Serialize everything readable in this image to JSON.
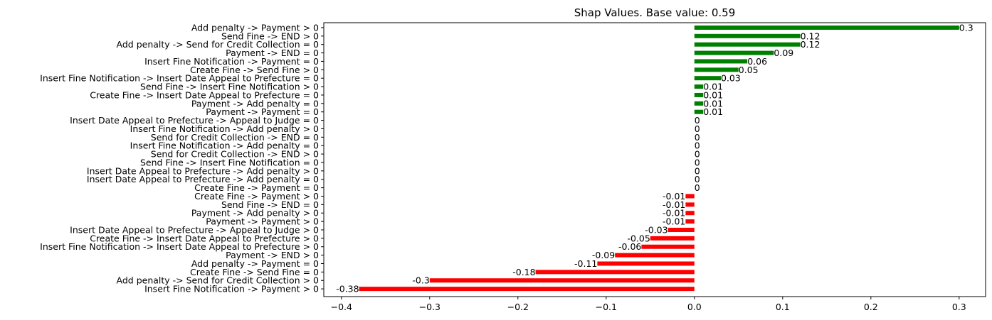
{
  "chart_data": {
    "type": "bar",
    "orientation": "horizontal",
    "title": "Shap Values. Base value: 0.59",
    "xlabel": "",
    "ylabel": "",
    "xlim": [
      -0.42,
      0.33
    ],
    "xticks": [
      -0.4,
      -0.3,
      -0.2,
      -0.1,
      0.0,
      0.1,
      0.2,
      0.3
    ],
    "xtick_labels": [
      "−0.4",
      "−0.3",
      "−0.2",
      "−0.1",
      "0.0",
      "0.1",
      "0.2",
      "0.3"
    ],
    "grid": false,
    "colors": {
      "positive": "#008000",
      "negative": "#ff0000"
    },
    "categories": [
      "Add penalty -> Payment > 0",
      "Send Fine -> END > 0",
      "Add penalty -> Send for Credit Collection = 0",
      "Payment -> END = 0",
      "Insert Fine Notification -> Payment = 0",
      "Create Fine -> Send Fine > 0",
      "Insert Fine Notification -> Insert Date Appeal to Prefecture = 0",
      "Send Fine -> Insert Fine Notification > 0",
      "Create Fine -> Insert Date Appeal to Prefecture = 0",
      "Payment -> Add penalty = 0",
      "Payment -> Payment = 0",
      "Insert Date Appeal to Prefecture -> Appeal to Judge = 0",
      "Insert Fine Notification -> Add penalty > 0",
      "Send for Credit Collection -> END = 0",
      "Insert Fine Notification -> Add penalty = 0",
      "Send for Credit Collection -> END > 0",
      "Send Fine -> Insert Fine Notification = 0",
      "Insert Date Appeal to Prefecture -> Add penalty > 0",
      "Insert Date Appeal to Prefecture -> Add penalty = 0",
      "Create Fine -> Payment = 0",
      "Create Fine -> Payment > 0",
      "Send Fine -> END = 0",
      "Payment -> Add penalty > 0",
      "Payment -> Payment > 0",
      "Insert Date Appeal to Prefecture -> Appeal to Judge > 0",
      "Create Fine -> Insert Date Appeal to Prefecture > 0",
      "Insert Fine Notification -> Insert Date Appeal to Prefecture > 0",
      "Payment -> END > 0",
      "Add penalty -> Payment = 0",
      "Create Fine -> Send Fine = 0",
      "Add penalty -> Send for Credit Collection > 0",
      "Insert Fine Notification -> Payment > 0"
    ],
    "values": [
      0.3,
      0.12,
      0.12,
      0.09,
      0.06,
      0.05,
      0.03,
      0.01,
      0.01,
      0.01,
      0.01,
      0,
      0,
      0,
      0,
      0,
      0,
      0,
      0,
      0,
      -0.01,
      -0.01,
      -0.01,
      -0.01,
      -0.03,
      -0.05,
      -0.06,
      -0.09,
      -0.11,
      -0.18,
      -0.3,
      -0.38
    ],
    "value_labels": [
      "0.3",
      "0.12",
      "0.12",
      "0.09",
      "0.06",
      "0.05",
      "0.03",
      "0.01",
      "0.01",
      "0.01",
      "0.01",
      "0",
      "0",
      "0",
      "0",
      "0",
      "0",
      "0",
      "0",
      "0",
      "-0.01",
      "-0.01",
      "-0.01",
      "-0.01",
      "-0.03",
      "-0.05",
      "-0.06",
      "-0.09",
      "-0.11",
      "-0.18",
      "-0.3",
      "-0.38"
    ]
  }
}
